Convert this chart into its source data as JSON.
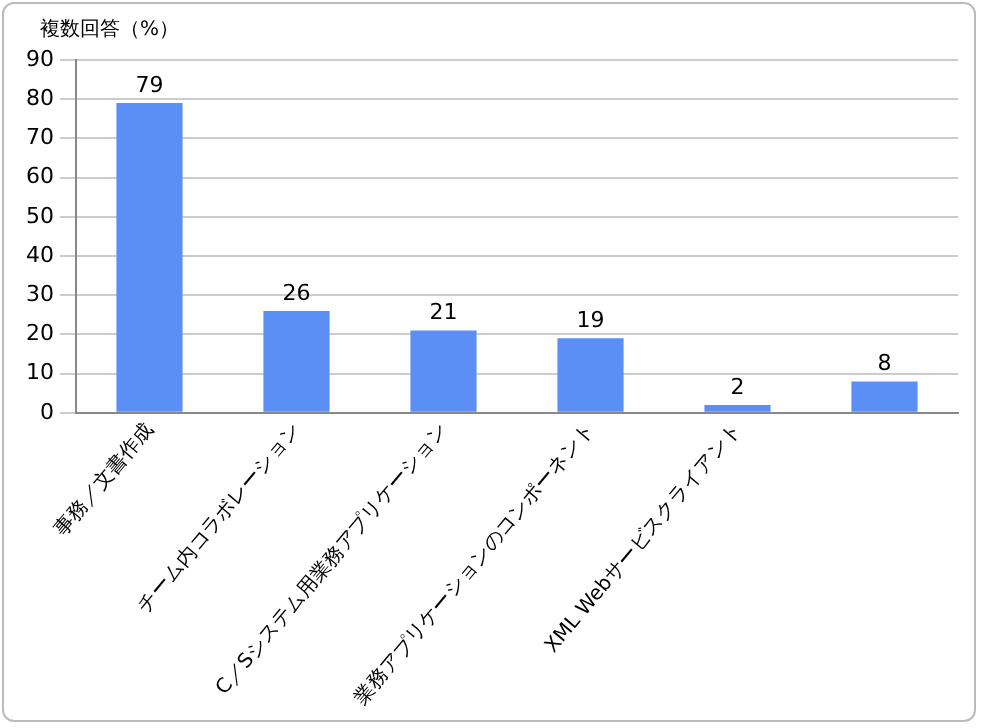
{
  "chart_data": {
    "type": "bar",
    "ylabel": "複数回答（%）",
    "categories": [
      "事務／文書作成",
      "チーム内コラボレーション",
      "C／Sシステム用業務アプリケーション",
      "業務アプリケーションのコンポーネント",
      "XML Webサービスクライアント",
      null
    ],
    "values": [
      79,
      26,
      21,
      19,
      2,
      8
    ],
    "color": "#5b8ff5",
    "ylim": [
      0,
      90
    ],
    "yticks": [
      0,
      10,
      20,
      30,
      40,
      50,
      60,
      70,
      80,
      90
    ],
    "grid": "y",
    "data_labels": true,
    "legend": false
  }
}
